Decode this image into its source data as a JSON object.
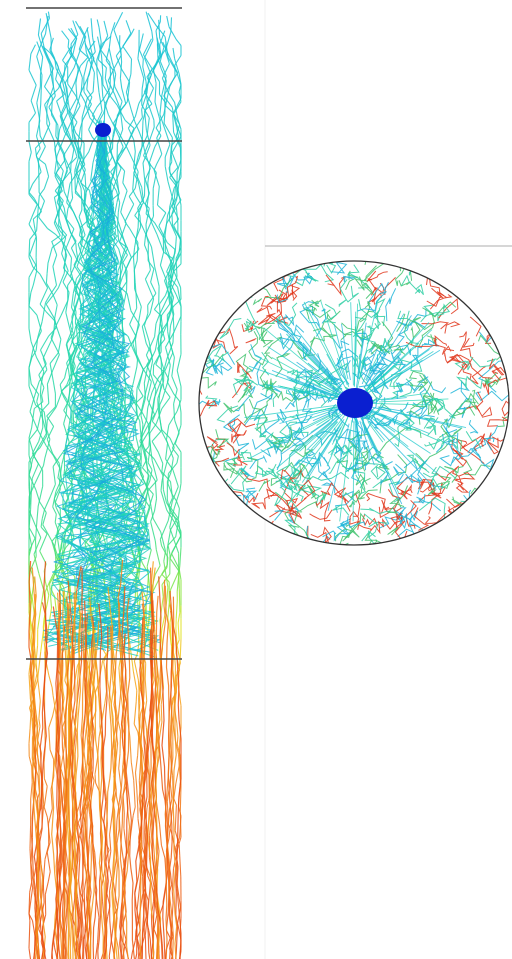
{
  "figure": {
    "views": [
      {
        "id": "side-view",
        "kind": "tall column of trajectories (side projection)"
      },
      {
        "id": "end-view",
        "kind": "circular cross-section of trajectories (axial projection)"
      }
    ],
    "colors": {
      "background": "#ffffff",
      "reference_line": "#444444",
      "divider_line": "#e8e8e8",
      "core": "#0a1fd0",
      "cross_section_edge": "#333333",
      "gradient": [
        "#0a2ad8",
        "#1e7fe8",
        "#19c2d6",
        "#22d6b0",
        "#3fe07a",
        "#8ee63a",
        "#e8e21a",
        "#f7a21a",
        "#f06a14",
        "#e84a10"
      ],
      "cross_section_fill": [
        "#1fb5d8",
        "#2fcfa4",
        "#3fc26c",
        "#e0351a"
      ]
    },
    "side_view_reference_lines": 3
  }
}
